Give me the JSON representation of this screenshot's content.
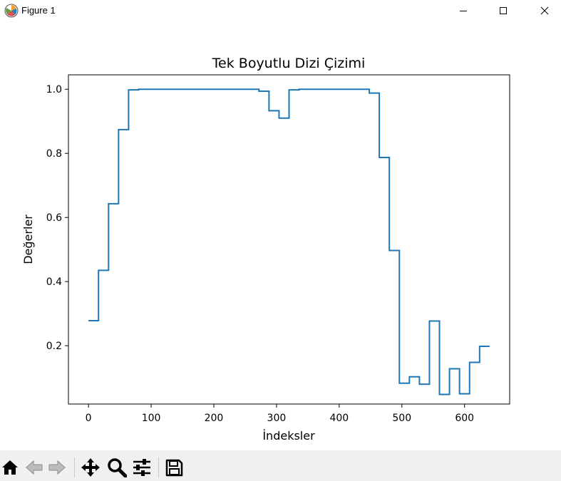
{
  "window": {
    "title": "Figure 1",
    "icon": "matplotlib-icon",
    "controls": [
      "minimize-icon",
      "maximize-icon",
      "close-icon"
    ]
  },
  "chart_data": {
    "type": "line",
    "title": "Tek Boyutlu Dizi Çizimi",
    "xlabel": "İndeksler",
    "ylabel": "Değerler",
    "xlim": [
      -32,
      672
    ],
    "ylim": [
      0.018,
      1.045
    ],
    "xticks": [
      0,
      100,
      200,
      300,
      400,
      500,
      600
    ],
    "yticks": [
      0.2,
      0.4,
      0.6,
      0.8,
      1.0
    ],
    "ytick_labels": [
      "0.2",
      "0.4",
      "0.6",
      "0.8",
      "1.0"
    ],
    "grid": false,
    "color": "#1f77b4",
    "step": 16,
    "x": [
      0,
      16,
      32,
      48,
      64,
      80,
      96,
      112,
      128,
      144,
      160,
      176,
      192,
      208,
      224,
      240,
      256,
      272,
      288,
      304,
      320,
      336,
      352,
      368,
      384,
      400,
      416,
      432,
      448,
      464,
      480,
      496,
      512,
      528,
      544,
      560,
      576,
      592,
      608,
      624,
      640
    ],
    "values": [
      0.278,
      0.435,
      0.643,
      0.874,
      0.998,
      1.0,
      1.0,
      1.0,
      1.0,
      1.0,
      1.0,
      1.0,
      1.0,
      1.0,
      1.0,
      1.0,
      1.0,
      0.994,
      0.933,
      0.91,
      0.998,
      1.0,
      1.0,
      1.0,
      1.0,
      1.0,
      1.0,
      1.0,
      0.988,
      0.787,
      0.497,
      0.083,
      0.103,
      0.08,
      0.277,
      0.048,
      0.128,
      0.05,
      0.148,
      0.198,
      0.198
    ]
  },
  "toolbar": {
    "buttons": [
      "home-icon",
      "back-icon",
      "forward-icon",
      "pan-icon",
      "zoom-icon",
      "configure-subplots-icon",
      "save-icon"
    ]
  }
}
